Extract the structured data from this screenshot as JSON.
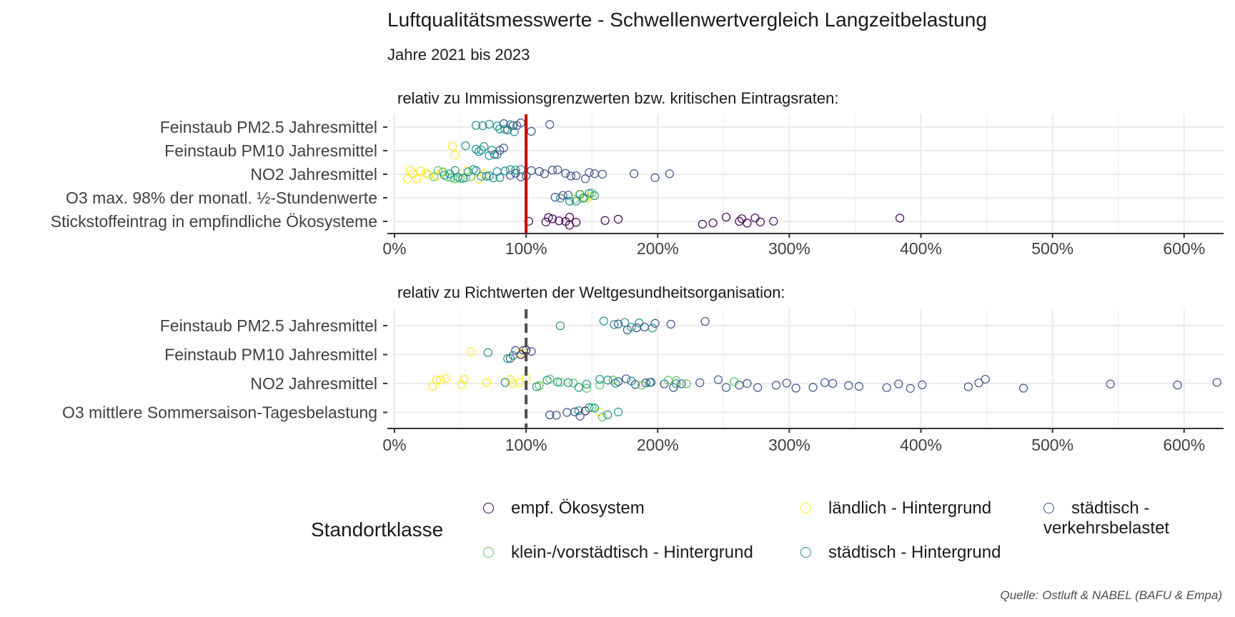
{
  "title": "Luftqualitätsmesswerte - Schwellenwertvergleich Langzeitbelastung",
  "subtitle": "Jahre 2021 bis 2023",
  "source": "Quelle: Ostluft & NABEL (BAFU & Empa)",
  "legend": {
    "title": "Standortklasse",
    "items": [
      {
        "label": "empf. Ökosystem",
        "color": "#440154"
      },
      {
        "label": "ländlich - Hintergrund",
        "color": "#FDE725"
      },
      {
        "label": "städtisch - verkehrsbelastet",
        "color": "#3B528B"
      },
      {
        "label": "klein-/vorstädtisch - Hintergrund",
        "color": "#5EC962"
      },
      {
        "label": "städtisch - Hintergrund",
        "color": "#21918C"
      }
    ]
  },
  "colors": {
    "empf": "#440154",
    "laendlich": "#FDE725",
    "verkehr": "#3B528B",
    "klein": "#5EC962",
    "staedtisch": "#21918C",
    "refline_red": "#CC0000",
    "refline_dash": "#4D4D4D"
  },
  "chart_data": [
    {
      "type": "scatter",
      "title": "relativ zu Immissionsgrenzwerten bzw. kritischen Eintragsraten:",
      "xlim": [
        0,
        630
      ],
      "xticks": [
        "0%",
        "100%",
        "200%",
        "300%",
        "400%",
        "500%",
        "600%"
      ],
      "reference_line": {
        "x": 100,
        "style": "solid",
        "color": "#CC0000"
      },
      "categories": [
        "Feinstaub PM2.5 Jahresmittel",
        "Feinstaub PM10 Jahresmittel",
        "NO2 Jahresmittel",
        "O3 max. 98% der monatl. ½-Stundenwerte",
        "Stickstoffeintrag in empfindliche Ökosysteme"
      ],
      "series": [
        {
          "name": "empf. Ökosystem",
          "key": "empf",
          "points": [
            [
              "Stickstoffeintrag in empfindliche Ökosysteme",
              [
                102,
                115,
                117,
                120,
                125,
                130,
                133,
                133,
                138,
                160,
                170,
                234,
                242,
                252,
                262,
                264,
                268,
                274,
                278,
                288,
                384
              ]
            ]
          ]
        },
        {
          "name": "ländlich - Hintergrund",
          "key": "laendlich",
          "points": [
            [
              "Feinstaub PM10 Jahresmittel",
              [
                44,
                46
              ]
            ],
            [
              "NO2 Jahresmittel",
              [
                10,
                12,
                14,
                17,
                20,
                24,
                26,
                32,
                36,
                55,
                64,
                68
              ]
            ],
            [
              "O3 max. 98% der monatl. ½-Stundenwerte",
              [
                140,
                146,
                150
              ]
            ]
          ]
        },
        {
          "name": "städtisch - verkehrsbelastet",
          "key": "verkehr",
          "points": [
            [
              "Feinstaub PM2.5 Jahresmittel",
              [
                83,
                86,
                90,
                93,
                96,
                104,
                118
              ]
            ],
            [
              "Feinstaub PM10 Jahresmittel",
              [
                76,
                80,
                83
              ]
            ],
            [
              "NO2 Jahresmittel",
              [
                88,
                92,
                96,
                100,
                104,
                110,
                114,
                120,
                124,
                130,
                134,
                138,
                145,
                148,
                152,
                158,
                182,
                198,
                209
              ]
            ],
            [
              "O3 max. 98% der monatl. ½-Stundenwerte",
              [
                122,
                128,
                132
              ]
            ]
          ]
        },
        {
          "name": "klein-/vorstädtisch - Hintergrund",
          "key": "klein",
          "points": [
            [
              "NO2 Jahresmittel",
              [
                30,
                33,
                37,
                40,
                43,
                46,
                50,
                54,
                58
              ]
            ],
            [
              "O3 max. 98% der monatl. ½-Stundenwerte",
              [
                137,
                143,
                150
              ]
            ]
          ]
        },
        {
          "name": "städtisch - Hintergrund",
          "key": "staedtisch",
          "points": [
            [
              "Feinstaub PM2.5 Jahresmittel",
              [
                62,
                67,
                72,
                78,
                80,
                84,
                88,
                91
              ]
            ],
            [
              "Feinstaub PM10 Jahresmittel",
              [
                54,
                62,
                64,
                66,
                68,
                72,
                74,
                78
              ]
            ],
            [
              "NO2 Jahresmittel",
              [
                38,
                42,
                46,
                48,
                52,
                56,
                60,
                62,
                66,
                70,
                72,
                75,
                78,
                80,
                84,
                88,
                92,
                96
              ]
            ],
            [
              "O3 max. 98% der monatl. ½-Stundenwerte",
              [
                126,
                133,
                138,
                141,
                144,
                148,
                152
              ]
            ]
          ]
        }
      ]
    },
    {
      "type": "scatter",
      "title": "relativ zu Richtwerten der Weltgesundheitsorganisation:",
      "xlim": [
        0,
        630
      ],
      "xticks": [
        "0%",
        "100%",
        "200%",
        "300%",
        "400%",
        "500%",
        "600%"
      ],
      "reference_line": {
        "x": 100,
        "style": "dashed",
        "color": "#4D4D4D"
      },
      "categories": [
        "Feinstaub PM2.5 Jahresmittel",
        "Feinstaub PM10 Jahresmittel",
        "NO2 Jahresmittel",
        "O3 mittlere Sommersaison-Tagesbelastung"
      ],
      "series": [
        {
          "name": "empf. Ökosystem",
          "key": "empf",
          "points": [
            [
              "Feinstaub PM10 Jahresmittel",
              [
                96,
                100
              ]
            ],
            [
              "O3 mittlere Sommersaison-Tagesbelastung",
              [
                145
              ]
            ]
          ]
        },
        {
          "name": "ländlich - Hintergrund",
          "key": "laendlich",
          "points": [
            [
              "Feinstaub PM10 Jahresmittel",
              [
                58,
                97
              ]
            ],
            [
              "NO2 Jahresmittel",
              [
                29,
                32,
                35,
                39,
                51,
                53,
                70,
                88,
                90,
                95,
                100,
                110
              ]
            ],
            [
              "O3 mittlere Sommersaison-Tagesbelastung",
              [
                156,
                162
              ]
            ]
          ]
        },
        {
          "name": "städtisch - verkehrsbelastet",
          "key": "verkehr",
          "points": [
            [
              "Feinstaub PM2.5 Jahresmittel",
              [
                170,
                177,
                184,
                190,
                198,
                210,
                236
              ]
            ],
            [
              "Feinstaub PM10 Jahresmittel",
              [
                88,
                92,
                98,
                104
              ]
            ],
            [
              "NO2 Jahresmittel",
              [
                170,
                176,
                183,
                191,
                195,
                205,
                212,
                218,
                232,
                246,
                252,
                262,
                268,
                276,
                290,
                298,
                305,
                318,
                327,
                333,
                345,
                353,
                374,
                383,
                392,
                401,
                436,
                444,
                449,
                478,
                544,
                595,
                625
              ]
            ],
            [
              "O3 mittlere Sommersaison-Tagesbelastung",
              [
                118,
                123,
                131,
                137,
                141
              ]
            ]
          ]
        },
        {
          "name": "klein-/vorstädtisch - Hintergrund",
          "key": "klein",
          "points": [
            [
              "NO2 Jahresmittel",
              [
                110,
                118,
                126,
                136,
                146,
                156,
                166,
                188,
                208,
                214,
                222,
                258
              ]
            ],
            [
              "O3 mittlere Sommersaison-Tagesbelastung",
              [
                150,
                158
              ]
            ]
          ]
        },
        {
          "name": "städtisch - Hintergrund",
          "key": "staedtisch",
          "points": [
            [
              "Feinstaub PM2.5 Jahresmittel",
              [
                126,
                159,
                167,
                175,
                180,
                186,
                196
              ]
            ],
            [
              "Feinstaub PM10 Jahresmittel",
              [
                71,
                86,
                90
              ]
            ],
            [
              "NO2 Jahresmittel",
              [
                84,
                108,
                116,
                124,
                132,
                140,
                146,
                156,
                162,
                168,
                180,
                194,
                214
              ]
            ],
            [
              "O3 mittlere Sommersaison-Tagesbelastung",
              [
                140,
                148,
                152,
                162,
                170
              ]
            ]
          ]
        }
      ]
    }
  ]
}
